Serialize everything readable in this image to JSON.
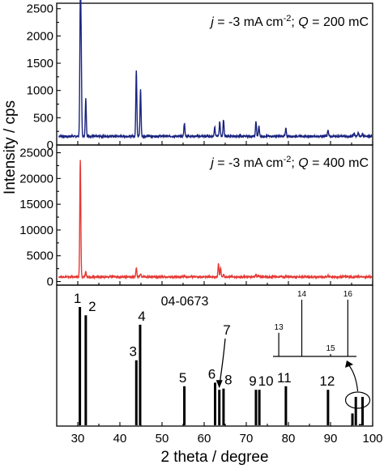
{
  "chart_data": [
    {
      "type": "line",
      "panel": "top",
      "annotation": {
        "j_sym": "j",
        "j_text": " = -3 mA cm",
        "j_exp": "-2",
        "sep": "; ",
        "q_sym": "Q",
        "q_text": " = 200 mC"
      },
      "color": "#1a237e",
      "xlim": [
        25,
        100
      ],
      "ylim": [
        0,
        2600
      ],
      "yticks": [
        0,
        500,
        1000,
        1500,
        2000,
        2500
      ],
      "baseline": 160,
      "peaks": [
        {
          "x": 30.6,
          "y": 2450
        },
        {
          "x": 30.8,
          "y": 1560
        },
        {
          "x": 31.9,
          "y": 850
        },
        {
          "x": 43.9,
          "y": 1380
        },
        {
          "x": 44.9,
          "y": 1020
        },
        {
          "x": 55.3,
          "y": 400
        },
        {
          "x": 62.5,
          "y": 330
        },
        {
          "x": 63.7,
          "y": 430
        },
        {
          "x": 64.6,
          "y": 460
        },
        {
          "x": 72.3,
          "y": 430
        },
        {
          "x": 73.0,
          "y": 340
        },
        {
          "x": 79.4,
          "y": 300
        },
        {
          "x": 89.4,
          "y": 280
        },
        {
          "x": 95.6,
          "y": 210
        },
        {
          "x": 96.6,
          "y": 230
        },
        {
          "x": 97.6,
          "y": 200
        }
      ]
    },
    {
      "type": "line",
      "panel": "middle",
      "annotation": {
        "j_sym": "j",
        "j_text": " = -3 mA cm",
        "j_exp": "-2",
        "sep": "; ",
        "q_sym": "Q",
        "q_text": " = 400 mC"
      },
      "color": "#e53935",
      "xlim": [
        25,
        100
      ],
      "ylim": [
        -700,
        26500
      ],
      "yticks": [
        0,
        5000,
        10000,
        15000,
        20000,
        25000
      ],
      "baseline": 900,
      "peaks": [
        {
          "x": 30.6,
          "y": 23500
        },
        {
          "x": 31.9,
          "y": 1800
        },
        {
          "x": 43.9,
          "y": 2600
        },
        {
          "x": 44.9,
          "y": 1500
        },
        {
          "x": 55.3,
          "y": 1100
        },
        {
          "x": 63.4,
          "y": 3400
        },
        {
          "x": 63.9,
          "y": 2700
        },
        {
          "x": 64.6,
          "y": 1300
        },
        {
          "x": 72.3,
          "y": 1300
        },
        {
          "x": 73.0,
          "y": 1100
        },
        {
          "x": 79.4,
          "y": 1000
        },
        {
          "x": 89.4,
          "y": 1200
        },
        {
          "x": 96.6,
          "y": 1000
        }
      ]
    },
    {
      "type": "bar",
      "panel": "bottom",
      "title": "04-0673",
      "xlim": [
        25,
        100
      ],
      "ylim": [
        0,
        100
      ],
      "reference_lines": [
        {
          "label": "1",
          "x": 30.5,
          "y": 100
        },
        {
          "label": "2",
          "x": 31.9,
          "y": 93
        },
        {
          "label": "3",
          "x": 43.9,
          "y": 55
        },
        {
          "label": "4",
          "x": 44.8,
          "y": 85
        },
        {
          "label": "5",
          "x": 55.3,
          "y": 33
        },
        {
          "label": "6",
          "x": 62.6,
          "y": 36
        },
        {
          "label": "7",
          "x": 63.6,
          "y": 30
        },
        {
          "label": "8",
          "x": 64.6,
          "y": 31
        },
        {
          "label": "9",
          "x": 72.3,
          "y": 30
        },
        {
          "label": "10",
          "x": 73.1,
          "y": 30
        },
        {
          "label": "11",
          "x": 79.4,
          "y": 33
        },
        {
          "label": "12",
          "x": 89.4,
          "y": 30
        },
        {
          "label": "13",
          "x": 95.2,
          "y": 10
        },
        {
          "label": "14",
          "x": 96.0,
          "y": 24
        },
        {
          "label": "15",
          "x": 97.0,
          "y": 1
        },
        {
          "label": "16",
          "x": 97.6,
          "y": 24
        }
      ],
      "inset_labels": [
        "13",
        "14",
        "15",
        "16"
      ],
      "peak_7_marker": "arrow"
    }
  ],
  "shared": {
    "xlabel": "2 theta / degree",
    "ylabel": "Intensity / cps",
    "xticks": [
      30,
      40,
      50,
      60,
      70,
      80,
      90,
      100
    ]
  }
}
